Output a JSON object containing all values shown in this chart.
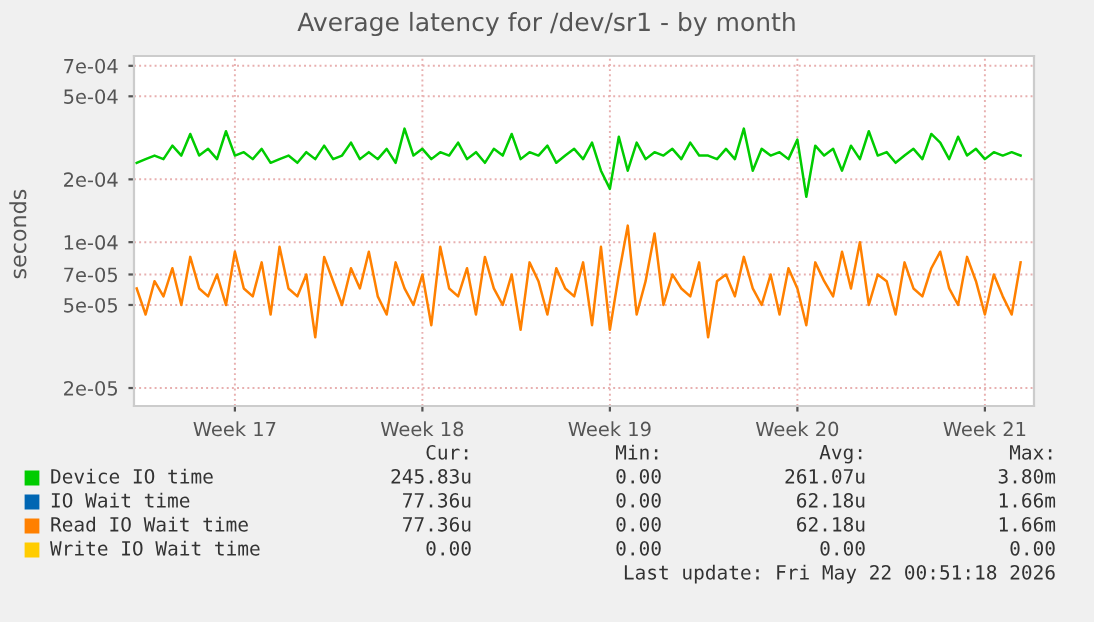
{
  "chart_data": {
    "type": "line",
    "title": "Average latency for /dev/sr1 - by month",
    "ylabel": "seconds",
    "categories": [
      null,
      null,
      null,
      null,
      null,
      null,
      null,
      null,
      null,
      null,
      null,
      "Week 17",
      null,
      null,
      null,
      null,
      null,
      null,
      null,
      null,
      null,
      null,
      null,
      null,
      null,
      null,
      null,
      null,
      null,
      null,
      null,
      null,
      "Week 18",
      null,
      null,
      null,
      null,
      null,
      null,
      null,
      null,
      null,
      null,
      null,
      null,
      null,
      null,
      null,
      null,
      null,
      null,
      null,
      null,
      "Week 19",
      null,
      null,
      null,
      null,
      null,
      null,
      null,
      null,
      null,
      null,
      null,
      null,
      null,
      null,
      null,
      null,
      null,
      null,
      null,
      null,
      "Week 20",
      null,
      null,
      null,
      null,
      null,
      null,
      null,
      null,
      null,
      null,
      null,
      null,
      null,
      null,
      null,
      null,
      null,
      null,
      null,
      null,
      "Week 21",
      null,
      null,
      null,
      null
    ],
    "series": [
      {
        "name": "Device IO time",
        "color": "#00cc00",
        "values": [
          0.00024,
          0.00025,
          0.00026,
          0.00025,
          0.00029,
          0.00026,
          0.00033,
          0.00026,
          0.00028,
          0.00025,
          0.00034,
          0.00026,
          0.00027,
          0.00025,
          0.00028,
          0.00024,
          0.00025,
          0.00026,
          0.00024,
          0.00027,
          0.00025,
          0.00029,
          0.00025,
          0.00026,
          0.0003,
          0.00025,
          0.00027,
          0.00025,
          0.00028,
          0.00024,
          0.00035,
          0.00026,
          0.00028,
          0.00025,
          0.00027,
          0.00026,
          0.0003,
          0.00025,
          0.00027,
          0.00024,
          0.00028,
          0.00026,
          0.00033,
          0.00025,
          0.00027,
          0.00026,
          0.00029,
          0.00024,
          0.00026,
          0.00028,
          0.00025,
          0.0003,
          0.00022,
          0.00018,
          0.00032,
          0.00022,
          0.0003,
          0.00025,
          0.00027,
          0.00026,
          0.00028,
          0.00025,
          0.0003,
          0.00026,
          0.00026,
          0.00025,
          0.00028,
          0.00025,
          0.00035,
          0.00022,
          0.00028,
          0.00026,
          0.00027,
          0.00025,
          0.00031,
          0.000165,
          0.00029,
          0.00026,
          0.00028,
          0.00022,
          0.00029,
          0.00025,
          0.00034,
          0.00026,
          0.00027,
          0.00024,
          0.00026,
          0.00028,
          0.00025,
          0.00033,
          0.0003,
          0.00025,
          0.00032,
          0.00026,
          0.00028,
          0.00025,
          0.00027,
          0.00026,
          0.00027,
          0.00026
        ]
      },
      {
        "name": "IO Wait time",
        "color": "#0066b3",
        "values": [
          null,
          null,
          null,
          null,
          null,
          null,
          null,
          null,
          null,
          null,
          null,
          null,
          null,
          null,
          null,
          null,
          null,
          null,
          null,
          null,
          null,
          null,
          null,
          null,
          null,
          null,
          null,
          null,
          null,
          null,
          null,
          null,
          null,
          null,
          null,
          null,
          null,
          null,
          null,
          null,
          null,
          null,
          null,
          null,
          null,
          null,
          null,
          null,
          null,
          null,
          null,
          null,
          null,
          null,
          null,
          null,
          null,
          null,
          null,
          null,
          null,
          null,
          null,
          null,
          null,
          null,
          null,
          null,
          null,
          null,
          null,
          null,
          null,
          null,
          null,
          null,
          null,
          null,
          null,
          null,
          null,
          null,
          null,
          null,
          null,
          null,
          null,
          null,
          null,
          null,
          null,
          null,
          null,
          null,
          null,
          null,
          null,
          null,
          null,
          null
        ]
      },
      {
        "name": "Read IO Wait time",
        "color": "#ff8000",
        "values": [
          6e-05,
          4.5e-05,
          6.5e-05,
          5.5e-05,
          7.5e-05,
          5e-05,
          8.5e-05,
          6e-05,
          5.5e-05,
          7e-05,
          5e-05,
          9e-05,
          6e-05,
          5.5e-05,
          8e-05,
          4.5e-05,
          9.5e-05,
          6e-05,
          5.5e-05,
          7e-05,
          3.5e-05,
          8.5e-05,
          6.5e-05,
          5e-05,
          7.5e-05,
          6e-05,
          9e-05,
          5.5e-05,
          4.5e-05,
          8e-05,
          6e-05,
          5e-05,
          7e-05,
          4e-05,
          9.5e-05,
          6e-05,
          5.5e-05,
          7.5e-05,
          4.5e-05,
          8.5e-05,
          6e-05,
          5e-05,
          7e-05,
          3.8e-05,
          8e-05,
          6.5e-05,
          4.5e-05,
          7.5e-05,
          6e-05,
          5.5e-05,
          8e-05,
          4e-05,
          9.5e-05,
          3.8e-05,
          7e-05,
          0.00012,
          4.5e-05,
          6.5e-05,
          0.00011,
          5e-05,
          7e-05,
          6e-05,
          5.5e-05,
          8e-05,
          3.5e-05,
          6.5e-05,
          7e-05,
          5.5e-05,
          8.5e-05,
          6e-05,
          5e-05,
          7e-05,
          4.5e-05,
          7.5e-05,
          6e-05,
          4e-05,
          8e-05,
          6.5e-05,
          5.5e-05,
          9e-05,
          6e-05,
          0.0001,
          5e-05,
          7e-05,
          6.5e-05,
          4.5e-05,
          8e-05,
          6e-05,
          5.5e-05,
          7.5e-05,
          9e-05,
          6e-05,
          5e-05,
          8.5e-05,
          6.5e-05,
          4.5e-05,
          7e-05,
          5.5e-05,
          4.5e-05,
          8e-05
        ]
      },
      {
        "name": "Write IO Wait time",
        "color": "#ffcc00",
        "values": [
          null,
          null,
          null,
          null,
          null,
          null,
          null,
          null,
          null,
          null,
          null,
          null,
          null,
          null,
          null,
          null,
          null,
          null,
          null,
          null,
          null,
          null,
          null,
          null,
          null,
          null,
          null,
          null,
          null,
          null,
          null,
          null,
          null,
          null,
          null,
          null,
          null,
          null,
          null,
          null,
          null,
          null,
          null,
          null,
          null,
          null,
          null,
          null,
          null,
          null,
          null,
          null,
          null,
          null,
          null,
          null,
          null,
          null,
          null,
          null,
          null,
          null,
          null,
          null,
          null,
          null,
          null,
          null,
          null,
          null,
          null,
          null,
          null,
          null,
          null,
          null,
          null,
          null,
          null,
          null,
          null,
          null,
          null,
          null,
          null,
          null,
          null,
          null,
          null,
          null,
          null,
          null,
          null,
          null,
          null,
          null,
          null,
          null,
          null,
          null
        ]
      }
    ],
    "log": "y",
    "ylim": [
      1.64e-05,
      0.00078
    ],
    "yticks": [
      {
        "value": 2e-05,
        "label": "2e-05"
      },
      {
        "value": 5e-05,
        "label": "5e-05"
      },
      {
        "value": 7e-05,
        "label": "7e-05"
      },
      {
        "value": 0.0001,
        "label": "1e-04"
      },
      {
        "value": 0.0002,
        "label": "2e-04"
      },
      {
        "value": 0.0005,
        "label": "5e-04"
      },
      {
        "value": 0.0007,
        "label": "7e-04"
      }
    ],
    "grid": true,
    "legend": "bottom",
    "annotations": [
      "Cur:",
      "Min:",
      "Avg:",
      "Max:",
      "245.83u",
      "0.00",
      "261.07u",
      "3.80m",
      "77.36u",
      "0.00",
      "62.18u",
      "1.66m",
      "77.36u",
      "0.00",
      "62.18u",
      "1.66m",
      "0.00",
      "0.00",
      "0.00",
      "0.00",
      "Last update: Fri May 22 00:51:18 2026"
    ]
  }
}
